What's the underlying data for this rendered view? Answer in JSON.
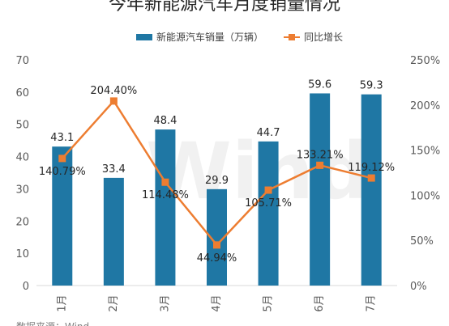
{
  "chart_data": {
    "type": "bar",
    "title": "今年新能源汽车月度销量情况",
    "source_note": "数据来源：Wind",
    "watermark": "Wind",
    "categories": [
      "1月",
      "2月",
      "3月",
      "4月",
      "5月",
      "6月",
      "7月"
    ],
    "series": [
      {
        "name": "新能源汽车销量（万辆）",
        "type": "bar",
        "axis": "left",
        "color": "#1f77a4",
        "values": [
          43.1,
          33.4,
          48.4,
          29.9,
          44.7,
          59.6,
          59.3
        ],
        "labels": [
          "43.1",
          "33.4",
          "48.4",
          "29.9",
          "44.7",
          "59.6",
          "59.3"
        ]
      },
      {
        "name": "同比增长",
        "type": "line",
        "axis": "right",
        "color": "#ed7d31",
        "values": [
          140.79,
          204.4,
          114.48,
          44.94,
          105.71,
          133.21,
          119.12
        ],
        "labels": [
          "140.79%",
          "204.40%",
          "114.48%",
          "44.94%",
          "105.71%",
          "133.21%",
          "119.12%"
        ]
      }
    ],
    "y_left": {
      "min": 0,
      "max": 70,
      "ticks": [
        "0",
        "10",
        "20",
        "30",
        "40",
        "50",
        "60",
        "70"
      ]
    },
    "y_right": {
      "min": 0,
      "max": 250,
      "ticks": [
        "0%",
        "50%",
        "100%",
        "150%",
        "200%",
        "250%"
      ]
    },
    "grid": false,
    "legend_position": "top"
  }
}
